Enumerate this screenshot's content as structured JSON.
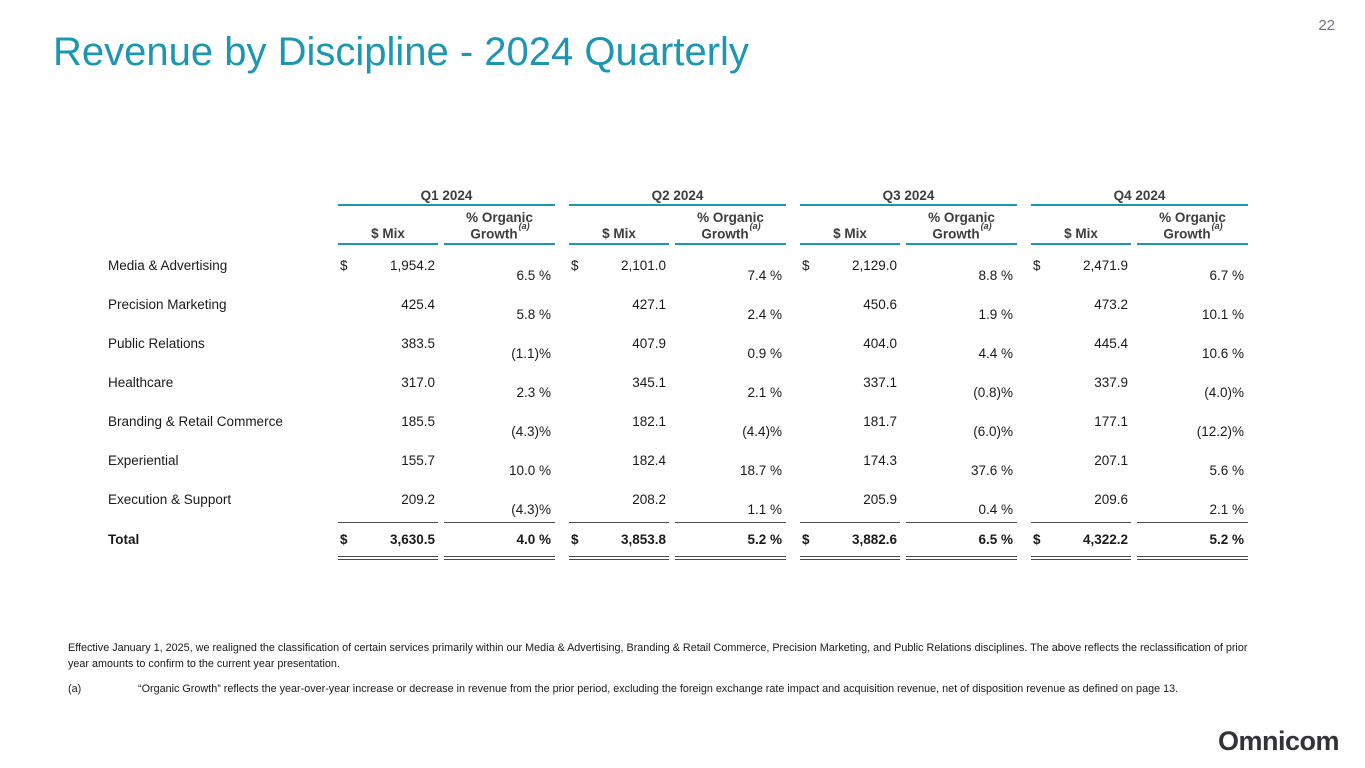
{
  "page": {
    "number": "22",
    "title": "Revenue by Discipline - 2024 Quarterly",
    "logo": "Omnicom"
  },
  "colors": {
    "accent_teal": "#1d96b2",
    "header_text": "#3d3d3d",
    "body_text": "#1a1a1a",
    "total_rule": "#4a4a4a",
    "page_number": "#6e7384"
  },
  "table": {
    "quarters": [
      "Q1 2024",
      "Q2 2024",
      "Q3 2024",
      "Q4 2024"
    ],
    "sub_headers": {
      "mix": "$ Mix",
      "growth_line1": "% Organic",
      "growth_line2": "Growth",
      "growth_sup": "(a)"
    },
    "rows": [
      {
        "label": "Media & Advertising",
        "dollar": "$",
        "cells": [
          {
            "mix": "1,954.2",
            "growth": "6.5 %"
          },
          {
            "mix": "2,101.0",
            "growth": "7.4 %"
          },
          {
            "mix": "2,129.0",
            "growth": "8.8 %"
          },
          {
            "mix": "2,471.9",
            "growth": "6.7 %"
          }
        ]
      },
      {
        "label": "Precision Marketing",
        "dollar": "",
        "cells": [
          {
            "mix": "425.4",
            "growth": "5.8 %"
          },
          {
            "mix": "427.1",
            "growth": "2.4 %"
          },
          {
            "mix": "450.6",
            "growth": "1.9 %"
          },
          {
            "mix": "473.2",
            "growth": "10.1 %"
          }
        ]
      },
      {
        "label": "Public Relations",
        "dollar": "",
        "cells": [
          {
            "mix": "383.5",
            "growth": "(1.1)%"
          },
          {
            "mix": "407.9",
            "growth": "0.9 %"
          },
          {
            "mix": "404.0",
            "growth": "4.4 %"
          },
          {
            "mix": "445.4",
            "growth": "10.6 %"
          }
        ]
      },
      {
        "label": "Healthcare",
        "dollar": "",
        "cells": [
          {
            "mix": "317.0",
            "growth": "2.3 %"
          },
          {
            "mix": "345.1",
            "growth": "2.1 %"
          },
          {
            "mix": "337.1",
            "growth": "(0.8)%"
          },
          {
            "mix": "337.9",
            "growth": "(4.0)%"
          }
        ]
      },
      {
        "label": "Branding & Retail Commerce",
        "dollar": "",
        "cells": [
          {
            "mix": "185.5",
            "growth": "(4.3)%"
          },
          {
            "mix": "182.1",
            "growth": "(4.4)%"
          },
          {
            "mix": "181.7",
            "growth": "(6.0)%"
          },
          {
            "mix": "177.1",
            "growth": "(12.2)%"
          }
        ]
      },
      {
        "label": "Experiential",
        "dollar": "",
        "cells": [
          {
            "mix": "155.7",
            "growth": "10.0 %"
          },
          {
            "mix": "182.4",
            "growth": "18.7 %"
          },
          {
            "mix": "174.3",
            "growth": "37.6 %"
          },
          {
            "mix": "207.1",
            "growth": "5.6 %"
          }
        ]
      },
      {
        "label": "Execution & Support",
        "dollar": "",
        "cells": [
          {
            "mix": "209.2",
            "growth": "(4.3)%"
          },
          {
            "mix": "208.2",
            "growth": "1.1 %"
          },
          {
            "mix": "205.9",
            "growth": "0.4 %"
          },
          {
            "mix": "209.6",
            "growth": "2.1 %"
          }
        ]
      }
    ],
    "total": {
      "label": "Total",
      "dollar": "$",
      "cells": [
        {
          "mix": "3,630.5",
          "growth": "4.0 %"
        },
        {
          "mix": "3,853.8",
          "growth": "5.2 %"
        },
        {
          "mix": "3,882.6",
          "growth": "6.5 %"
        },
        {
          "mix": "4,322.2",
          "growth": "5.2 %"
        }
      ]
    }
  },
  "footnotes": {
    "realignment": "Effective January 1, 2025, we realigned the classification of certain services primarily within our Media & Advertising, Branding & Retail Commerce, Precision Marketing, and Public Relations disciplines. The above reflects the reclassification of prior year amounts to confirm to the current year presentation.",
    "a_marker": "(a)",
    "a_text": "“Organic Growth” reflects the year-over-year increase or decrease in revenue from the prior period, excluding the foreign exchange rate impact and acquisition revenue, net of disposition revenue as defined on page 13."
  }
}
